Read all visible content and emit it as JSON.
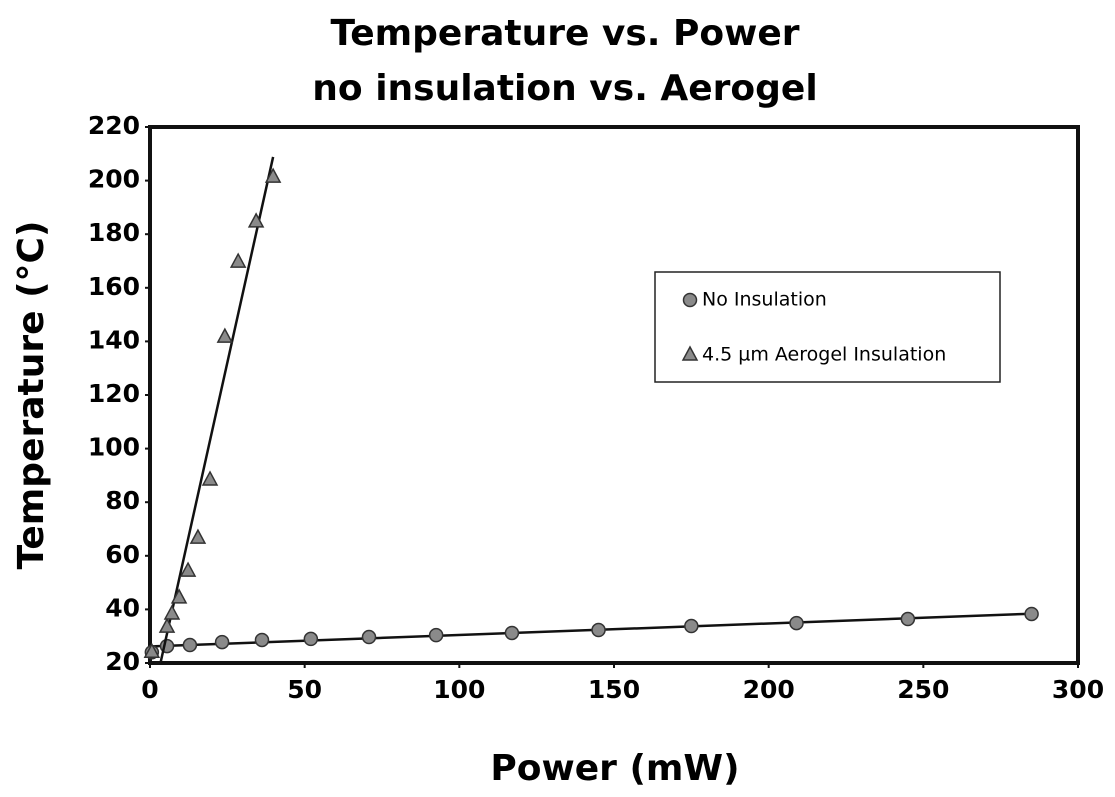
{
  "chart_data": {
    "type": "scatter",
    "title": "Temperature vs. Power",
    "subtitle": "no insulation vs. Aerogel",
    "x_label": "Power (mW)",
    "y_label": "Temperature (°C)",
    "xlim": [
      0,
      300
    ],
    "xticks": [
      0,
      50,
      100,
      150,
      200,
      250,
      300
    ],
    "ylim": [
      20,
      220
    ],
    "yticks": [
      20,
      40,
      60,
      80,
      100,
      120,
      140,
      160,
      180,
      200,
      220
    ],
    "grid": false,
    "legend": "upper right",
    "trendline": true,
    "series": [
      {
        "name": "No Insulation",
        "marker": "circle",
        "color": "#8a8a8a",
        "x": [
          0.6,
          5.5,
          12.9,
          23.3,
          36.2,
          52,
          70.8,
          92.5,
          117,
          145,
          175,
          209,
          245,
          285
        ],
        "values": [
          24,
          26.3,
          26.7,
          27.8,
          28.6,
          29,
          29.7,
          30.4,
          31.2,
          32.3,
          33.8,
          34.9,
          36.4,
          38.3
        ]
      },
      {
        "name": "4.5 µm Aerogel Insulation",
        "marker": "triangle",
        "color": "#8a8a8a",
        "x": [
          0.6,
          5.5,
          7.1,
          9.4,
          12.3,
          15.5,
          19.4,
          24.2,
          28.5,
          34.3,
          39.8
        ],
        "values": [
          24,
          33.4,
          38.3,
          44.3,
          54.3,
          66.6,
          88.3,
          141.6,
          169.6,
          184.6,
          201.3
        ]
      }
    ]
  }
}
